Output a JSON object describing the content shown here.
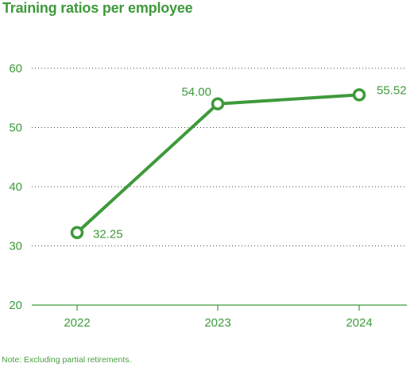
{
  "chart_data": {
    "type": "line",
    "title": "Training ratios per employee",
    "categories": [
      "2022",
      "2023",
      "2024"
    ],
    "series": [
      {
        "values": [
          32.25,
          54.0,
          55.52
        ]
      }
    ],
    "data_labels": [
      "32.25",
      "54.00",
      "55.52"
    ],
    "ylim": [
      20,
      60
    ],
    "yticks": [
      20,
      30,
      40,
      50,
      60
    ],
    "xlabel": "",
    "ylabel": "",
    "grid": true,
    "legend": "none",
    "color": "#3e9a3a"
  },
  "note": "Note: Excluding partial retirements."
}
